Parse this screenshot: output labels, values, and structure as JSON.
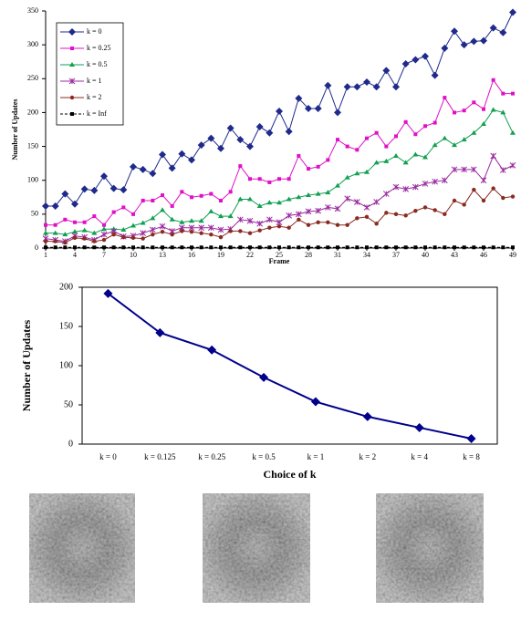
{
  "chart_data": [
    {
      "type": "line",
      "xlabel": "Frame",
      "ylabel": "Number of Updates",
      "x": [
        1,
        2,
        3,
        4,
        5,
        6,
        7,
        8,
        9,
        10,
        11,
        12,
        13,
        14,
        15,
        16,
        17,
        18,
        19,
        20,
        21,
        22,
        23,
        24,
        25,
        26,
        27,
        28,
        29,
        30,
        31,
        32,
        33,
        34,
        35,
        36,
        37,
        38,
        39,
        40,
        41,
        42,
        43,
        44,
        45,
        46,
        47,
        48,
        49
      ],
      "xlim": [
        1,
        49
      ],
      "xticks": [
        1,
        4,
        7,
        10,
        13,
        16,
        19,
        22,
        25,
        28,
        31,
        34,
        37,
        40,
        43,
        46,
        49
      ],
      "ylim": [
        0,
        350
      ],
      "yticks": [
        0,
        50,
        100,
        150,
        200,
        250,
        300,
        350
      ],
      "grid": false,
      "legend": "upper left",
      "series": [
        {
          "name": "k = 0",
          "color": "#1f2a8c",
          "marker": "diamond",
          "values": [
            62,
            62,
            80,
            65,
            87,
            85,
            106,
            88,
            86,
            120,
            116,
            110,
            138,
            118,
            139,
            130,
            152,
            162,
            147,
            177,
            160,
            150,
            179,
            170,
            202,
            172,
            221,
            206,
            206,
            240,
            200,
            238,
            238,
            245,
            238,
            262,
            238,
            272,
            278,
            283,
            255,
            295,
            320,
            300,
            305,
            306,
            325,
            318,
            348
          ]
        },
        {
          "name": "k = 0.25",
          "color": "#e010c8",
          "marker": "square",
          "values": [
            34,
            34,
            42,
            38,
            38,
            47,
            34,
            53,
            60,
            50,
            70,
            70,
            78,
            62,
            83,
            75,
            77,
            80,
            70,
            83,
            121,
            102,
            102,
            97,
            102,
            102,
            136,
            117,
            120,
            130,
            160,
            150,
            145,
            162,
            170,
            150,
            165,
            186,
            168,
            180,
            185,
            222,
            200,
            203,
            215,
            205,
            248,
            228,
            228
          ]
        },
        {
          "name": "k = 0.5",
          "color": "#10a050",
          "marker": "triangle",
          "values": [
            22,
            22,
            20,
            24,
            26,
            22,
            28,
            28,
            27,
            33,
            37,
            44,
            56,
            42,
            38,
            40,
            40,
            54,
            47,
            47,
            72,
            72,
            62,
            67,
            67,
            72,
            75,
            78,
            80,
            82,
            92,
            104,
            110,
            112,
            126,
            128,
            136,
            126,
            138,
            134,
            152,
            162,
            152,
            160,
            170,
            183,
            204,
            200,
            170
          ]
        },
        {
          "name": "k = 1",
          "color": "#9a2aa0",
          "marker": "cross",
          "values": [
            14,
            12,
            10,
            18,
            16,
            12,
            20,
            25,
            17,
            18,
            22,
            27,
            32,
            25,
            30,
            30,
            30,
            30,
            27,
            28,
            42,
            40,
            36,
            42,
            38,
            48,
            50,
            54,
            55,
            60,
            58,
            73,
            68,
            60,
            68,
            80,
            90,
            87,
            90,
            95,
            98,
            100,
            116,
            116,
            116,
            100,
            136,
            115,
            122
          ]
        },
        {
          "name": "k = 2",
          "color": "#8a2a20",
          "marker": "circle",
          "values": [
            10,
            10,
            8,
            15,
            14,
            10,
            12,
            20,
            16,
            15,
            14,
            20,
            24,
            20,
            25,
            24,
            22,
            20,
            16,
            25,
            25,
            22,
            26,
            30,
            32,
            30,
            42,
            34,
            38,
            38,
            34,
            34,
            44,
            46,
            36,
            52,
            50,
            48,
            55,
            60,
            56,
            50,
            70,
            64,
            86,
            70,
            88,
            74,
            76
          ]
        },
        {
          "name": "k = Inf",
          "color": "#000000",
          "marker": "square",
          "dash": true,
          "values": [
            1,
            1,
            1,
            1,
            1,
            1,
            1,
            1,
            1,
            1,
            1,
            1,
            1,
            1,
            1,
            1,
            1,
            1,
            1,
            1,
            1,
            1,
            1,
            1,
            1,
            1,
            1,
            1,
            1,
            1,
            1,
            1,
            1,
            1,
            1,
            1,
            1,
            1,
            1,
            1,
            1,
            1,
            1,
            1,
            1,
            1,
            1,
            1,
            1
          ]
        }
      ]
    },
    {
      "type": "line",
      "xlabel": "Choice of k",
      "ylabel": "Number of Updates",
      "categories": [
        "k = 0",
        "k = 0.125",
        "k = 0.25",
        "k = 0.5",
        "k = 1",
        "k = 2",
        "k = 4",
        "k = 8"
      ],
      "ylim": [
        0,
        200
      ],
      "yticks": [
        0,
        50,
        100,
        150,
        200
      ],
      "grid": false,
      "series": [
        {
          "color": "#00008b",
          "marker": "diamond",
          "values": [
            192,
            142,
            120,
            85,
            54,
            35,
            21,
            7
          ]
        }
      ]
    }
  ]
}
